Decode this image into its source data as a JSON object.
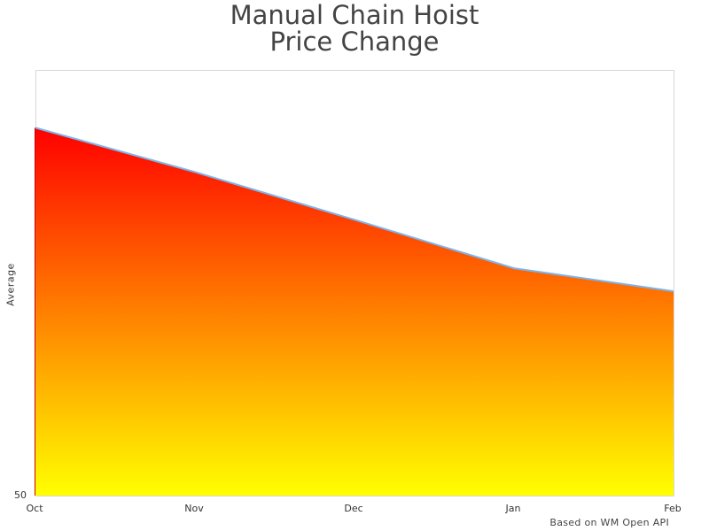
{
  "chart": {
    "title_line1": "Manual Chain Hoist",
    "title_line2": "Price Change",
    "ylabel": "Average",
    "ytick_min": "50",
    "xticks": [
      "Oct",
      "Nov",
      "Dec",
      "Jan",
      "Feb"
    ],
    "credit": "Based on WM Open API",
    "colors": {
      "gradient_top": "#ff0000",
      "gradient_bottom": "#ffff00",
      "line": "#7cb5ec",
      "plot_border": "#d8d8d8"
    }
  },
  "chart_data": {
    "type": "area",
    "title": "Manual Chain Hoist Price Change",
    "xlabel": "",
    "ylabel": "Average",
    "categories": [
      "Oct",
      "Nov",
      "Dec",
      "Jan",
      "Feb"
    ],
    "series": [
      {
        "name": "Average",
        "values": [
          93.2,
          88.0,
          82.4,
          76.7,
          74.0
        ]
      }
    ],
    "ylim": [
      50,
      100
    ],
    "y_tick_labels": [
      "50"
    ],
    "grid": false,
    "legend": "none",
    "fill": "vertical gradient red (top) to yellow (bottom)",
    "annotations": [
      "Based on WM Open API"
    ],
    "note": "Only the y-axis minimum (50) is labeled; values estimated from pixel positions assuming top of plot = 100."
  }
}
